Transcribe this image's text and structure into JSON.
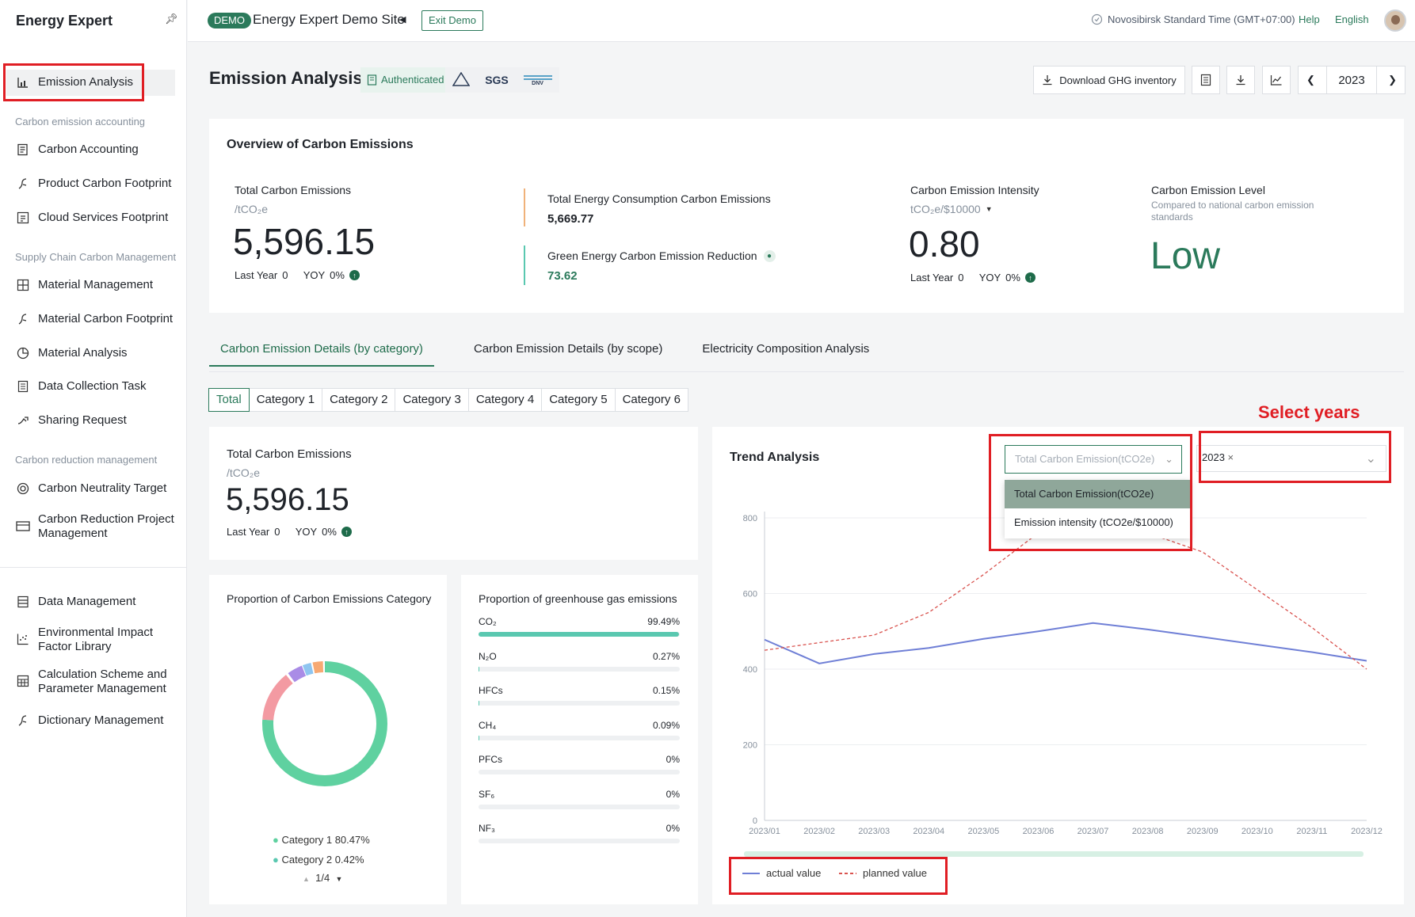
{
  "sidebar": {
    "brand": "Energy Expert",
    "items": [
      {
        "label": "Emission Analysis",
        "icon": "chart-icon"
      },
      {
        "section": "Carbon emission accounting"
      },
      {
        "label": "Carbon Accounting",
        "icon": "ledger-icon"
      },
      {
        "label": "Product Carbon Footprint",
        "icon": "footprint-icon"
      },
      {
        "label": "Cloud Services Footprint",
        "icon": "cloud-grid-icon"
      },
      {
        "section": "Supply Chain Carbon Management"
      },
      {
        "label": "Material Management",
        "icon": "material-icon"
      },
      {
        "label": "Material Carbon Footprint",
        "icon": "footprint-icon"
      },
      {
        "label": "Material Analysis",
        "icon": "pie-icon"
      },
      {
        "label": "Data Collection Task",
        "icon": "document-icon"
      },
      {
        "label": "Sharing Request",
        "icon": "share-icon"
      },
      {
        "section": "Carbon reduction management"
      },
      {
        "label": "Carbon Neutrality Target",
        "icon": "target-icon"
      },
      {
        "label": "Carbon Reduction Project Management",
        "icon": "project-icon"
      },
      {
        "label": "Data Management",
        "icon": "database-icon"
      },
      {
        "label": "Environmental Impact Factor Library",
        "icon": "scatter-icon"
      },
      {
        "label": "Calculation Scheme and Parameter Management",
        "icon": "calculator-icon"
      },
      {
        "label": "Dictionary Management",
        "icon": "dictionary-icon"
      }
    ]
  },
  "topbar": {
    "demo": "DEMO",
    "site": "Energy Expert Demo Site",
    "exit": "Exit Demo",
    "timezone": "Novosibirsk Standard Time (GMT+07:00)",
    "help": "Help",
    "language": "English"
  },
  "header": {
    "title": "Emission Analysis",
    "auth": "Authenticated",
    "certs": [
      "SGS",
      "DNV"
    ],
    "download": "Download GHG inventory",
    "year": "2023"
  },
  "overview": {
    "title": "Overview of Carbon Emissions",
    "total_label": "Total Carbon Emissions",
    "total_unit": "/tCO₂e",
    "total_value": "5,596.15",
    "last_year": "Last Year",
    "last_year_val": "0",
    "yoy": "YOY",
    "yoy_val": "0%",
    "energy_label": "Total Energy Consumption Carbon Emissions",
    "energy_value": "5,669.77",
    "green_label": "Green Energy Carbon Emission Reduction",
    "green_value": "73.62",
    "intensity_label": "Carbon Emission Intensity",
    "intensity_unit": "tCO₂e/$10000",
    "intensity_value": "0.80",
    "level_label": "Carbon Emission Level",
    "level_sub": "Compared to national carbon emission standards",
    "level_value": "Low"
  },
  "tabs": [
    "Carbon Emission Details (by category)",
    "Carbon Emission Details (by scope)",
    "Electricity Composition Analysis"
  ],
  "category_tabs": [
    "Total",
    "Category 1",
    "Category 2",
    "Category 3",
    "Category 4",
    "Category 5",
    "Category 6"
  ],
  "summary": {
    "label": "Total Carbon Emissions",
    "unit": "/tCO₂e",
    "value": "5,596.15",
    "last_year": "Last Year",
    "last_year_val": "0",
    "yoy": "YOY",
    "yoy_val": "0%"
  },
  "proportion": {
    "title": "Proportion of Carbon Emissions Category",
    "legend": [
      {
        "name": "Category 1",
        "value": "80.47%"
      },
      {
        "name": "Category 2",
        "value": "0.42%"
      }
    ],
    "pager": "1/4",
    "colors": [
      "#5fd1a0",
      "#f39aa2",
      "#a98ce6",
      "#8ec5f0",
      "#f7a973"
    ]
  },
  "ghg": {
    "title": "Proportion of greenhouse gas emissions",
    "rows": [
      {
        "name": "CO₂",
        "value": "99.49%",
        "pct": 99.49
      },
      {
        "name": "N₂O",
        "value": "0.27%",
        "pct": 0.27
      },
      {
        "name": "HFCs",
        "value": "0.15%",
        "pct": 0.15
      },
      {
        "name": "CH₄",
        "value": "0.09%",
        "pct": 0.09
      },
      {
        "name": "PFCs",
        "value": "0%",
        "pct": 0
      },
      {
        "name": "SF₆",
        "value": "0%",
        "pct": 0
      },
      {
        "name": "NF₃",
        "value": "0%",
        "pct": 0
      }
    ]
  },
  "trend": {
    "title": "Trend Analysis",
    "selector_placeholder": "Total Carbon Emission(tCO2e)",
    "options": [
      "Total Carbon Emission(tCO2e)",
      "Emission intensity (tCO2e/$10000)"
    ],
    "year_tag": "2023",
    "annotation": "Select years"
  },
  "chart_data": {
    "type": "line",
    "x": [
      "2023/01",
      "2023/02",
      "2023/03",
      "2023/04",
      "2023/05",
      "2023/06",
      "2023/07",
      "2023/08",
      "2023/09",
      "2023/10",
      "2023/11",
      "2023/12"
    ],
    "yticks": [
      0,
      200,
      400,
      600,
      800
    ],
    "ylim": [
      0,
      800
    ],
    "series": [
      {
        "name": "actual value",
        "color": "#6f7fd6",
        "style": "solid",
        "values": [
          478,
          415,
          440,
          456,
          480,
          500,
          522,
          505,
          485,
          465,
          445,
          422
        ]
      },
      {
        "name": "planned value",
        "color": "#d9534f",
        "style": "dashed",
        "values": [
          450,
          470,
          490,
          550,
          650,
          760,
          820,
          760,
          710,
          610,
          510,
          400
        ]
      }
    ]
  }
}
